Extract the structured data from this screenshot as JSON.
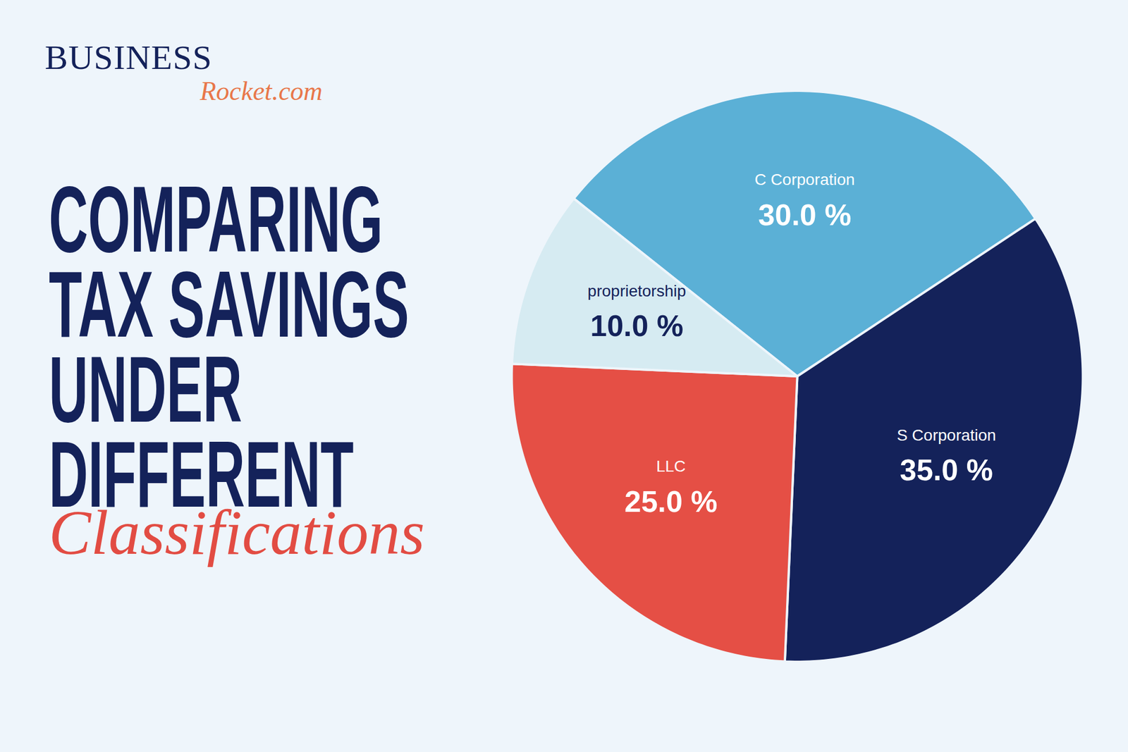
{
  "header": {
    "brand": "BUSINESS",
    "brand_sub": "Rocket.com"
  },
  "chart_data": {
    "type": "pie",
    "title": "COMPARING\nTAX SAVINGS\nUNDER\nDIFFERENT",
    "subtitle": "Classifications",
    "categories": [
      "C Corporation",
      "S Corporation",
      "LLC",
      "proprietorship"
    ],
    "values": [
      30,
      35,
      25,
      10
    ],
    "value_labels": [
      "30.0 %",
      "35.0 %",
      "25.0 %",
      "10.0 %"
    ],
    "colors": [
      "#5bb0d6",
      "#14225a",
      "#e54f45",
      "#d6ebf2"
    ],
    "data_labels": true,
    "tick_labels": false
  }
}
